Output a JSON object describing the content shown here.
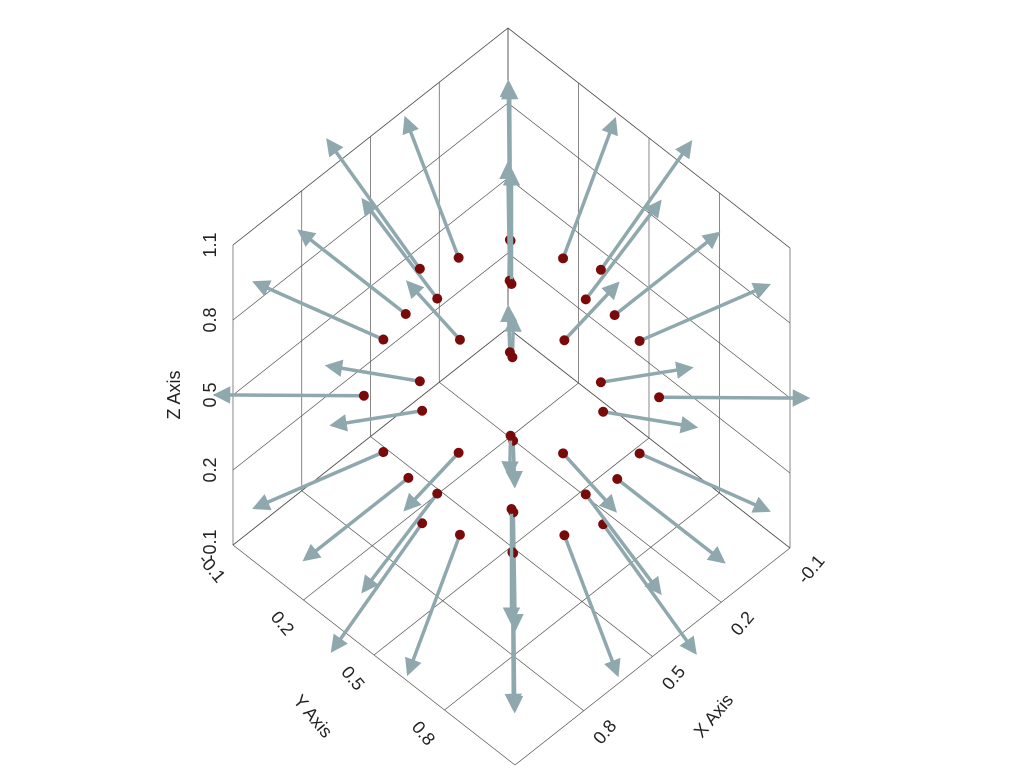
{
  "chart_data": {
    "type": "quiver3d",
    "x_label": "X Axis",
    "y_label": "Y Axis",
    "z_label": "Z Axis",
    "xlim": [
      -0.1,
      1.1
    ],
    "ylim": [
      -0.1,
      1.1
    ],
    "zlim": [
      -0.1,
      1.1
    ],
    "xticks": [
      -0.1,
      0.2,
      0.5,
      0.8
    ],
    "yticks": [
      -0.1,
      0.2,
      0.5,
      0.8
    ],
    "zticks": [
      -0.1,
      0.2,
      0.5,
      0.8,
      1.1
    ],
    "grid": true,
    "arrow_color": "#8fa8ad",
    "point_color": "#7a0a0a",
    "x": [
      0.725,
      0.66,
      0.5,
      0.34,
      0.275,
      0.34,
      0.5,
      0.66,
      0.89,
      0.776,
      0.5,
      0.224,
      0.11,
      0.224,
      0.5,
      0.776,
      0.95,
      0.818,
      0.5,
      0.182,
      0.05,
      0.182,
      0.5,
      0.818,
      0.89,
      0.776,
      0.5,
      0.224,
      0.11,
      0.224,
      0.5,
      0.776,
      0.725,
      0.66,
      0.5,
      0.34,
      0.275,
      0.34,
      0.5,
      0.66,
      0.5,
      0.5
    ],
    "y": [
      0.5,
      0.66,
      0.725,
      0.66,
      0.5,
      0.34,
      0.275,
      0.34,
      0.5,
      0.776,
      0.89,
      0.776,
      0.5,
      0.224,
      0.11,
      0.224,
      0.5,
      0.818,
      0.95,
      0.818,
      0.5,
      0.182,
      0.05,
      0.182,
      0.5,
      0.776,
      0.89,
      0.776,
      0.5,
      0.224,
      0.11,
      0.224,
      0.5,
      0.66,
      0.725,
      0.66,
      0.5,
      0.34,
      0.275,
      0.34,
      0.5,
      0.5
    ],
    "z": [
      0.89,
      0.89,
      0.89,
      0.89,
      0.89,
      0.89,
      0.89,
      0.89,
      0.725,
      0.725,
      0.725,
      0.725,
      0.725,
      0.725,
      0.725,
      0.725,
      0.5,
      0.5,
      0.5,
      0.5,
      0.5,
      0.5,
      0.5,
      0.5,
      0.275,
      0.275,
      0.275,
      0.275,
      0.275,
      0.275,
      0.275,
      0.275,
      0.11,
      0.11,
      0.11,
      0.11,
      0.11,
      0.11,
      0.11,
      0.11,
      0.95,
      0.05
    ],
    "u": [
      0.075,
      0.053,
      0,
      -0.053,
      -0.075,
      -0.053,
      0,
      0.053,
      0.13,
      0.092,
      0,
      -0.092,
      -0.13,
      -0.092,
      0,
      0.092,
      0.15,
      0.106,
      0,
      -0.106,
      -0.15,
      -0.106,
      0,
      0.106,
      0.13,
      0.092,
      0,
      -0.092,
      -0.13,
      -0.092,
      0,
      0.092,
      0.075,
      0.053,
      0,
      -0.053,
      -0.075,
      -0.053,
      0,
      0.053,
      0,
      0
    ],
    "v": [
      0,
      0.053,
      0.075,
      0.053,
      0,
      -0.053,
      -0.075,
      -0.053,
      0,
      0.092,
      0.13,
      0.092,
      0,
      -0.092,
      -0.13,
      -0.092,
      0,
      0.106,
      0.15,
      0.106,
      0,
      -0.106,
      -0.15,
      -0.106,
      0,
      0.092,
      0.13,
      0.092,
      0,
      -0.092,
      -0.13,
      -0.092,
      0,
      0.053,
      0.075,
      0.053,
      0,
      -0.053,
      -0.075,
      -0.053,
      0,
      0
    ],
    "w": [
      0.13,
      0.13,
      0.13,
      0.13,
      0.13,
      0.13,
      0.13,
      0.13,
      0.075,
      0.075,
      0.075,
      0.075,
      0.075,
      0.075,
      0.075,
      0.075,
      0,
      0,
      0,
      0,
      0,
      0,
      0,
      0,
      -0.075,
      -0.075,
      -0.075,
      -0.075,
      -0.075,
      -0.075,
      -0.075,
      -0.075,
      -0.13,
      -0.13,
      -0.13,
      -0.13,
      -0.13,
      -0.13,
      -0.13,
      -0.13,
      0.15,
      -0.15
    ]
  }
}
